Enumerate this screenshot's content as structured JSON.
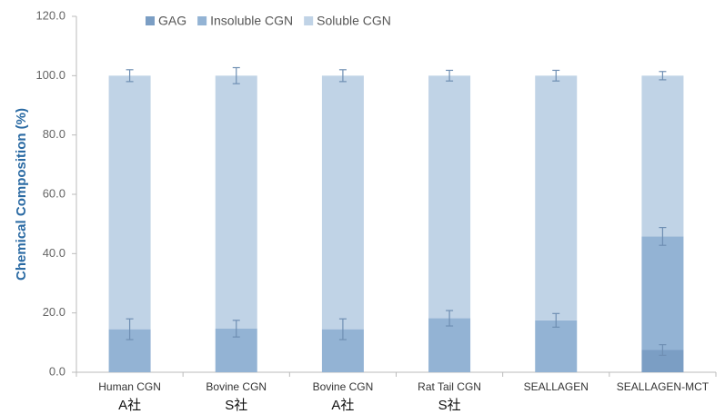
{
  "chart_data": {
    "type": "stacked-bar",
    "y_axis_label": "Chemical Composition (%)",
    "categories": [
      "Human CGN",
      "Bovine CGN",
      "Bovine CGN",
      "Rat Tail CGN",
      "SEALLAGEN",
      "SEALLAGEN-MCT"
    ],
    "category_sublabels": [
      "A社",
      "S社",
      "A社",
      "S社",
      null,
      null
    ],
    "series": [
      {
        "name": "GAG",
        "color": "#7b9ec4",
        "values": [
          0,
          0,
          0,
          0,
          0,
          7.5
        ],
        "errors": [
          null,
          null,
          null,
          null,
          null,
          1.8
        ]
      },
      {
        "name": "Insoluble CGN",
        "color": "#93b3d4",
        "values": [
          14.5,
          14.7,
          14.5,
          18.2,
          17.5,
          38.3
        ],
        "errors": [
          3.5,
          2.8,
          3.5,
          2.6,
          2.3,
          3.0
        ]
      },
      {
        "name": "Soluble CGN",
        "color": "#c0d3e6",
        "values": [
          85.5,
          85.3,
          85.5,
          81.8,
          82.5,
          54.2
        ],
        "errors": [
          2.0,
          2.7,
          2.0,
          1.8,
          1.8,
          1.4
        ]
      }
    ],
    "ylim": [
      0,
      120
    ],
    "yticks": [
      {
        "value": 0,
        "label": "0.0"
      },
      {
        "value": 20,
        "label": "20.0"
      },
      {
        "value": 40,
        "label": "40.0"
      },
      {
        "value": 60,
        "label": "60.0"
      },
      {
        "value": 80,
        "label": "80.0"
      },
      {
        "value": 100,
        "label": "100.0"
      },
      {
        "value": 120,
        "label": "120.0"
      }
    ],
    "legend": "top"
  }
}
